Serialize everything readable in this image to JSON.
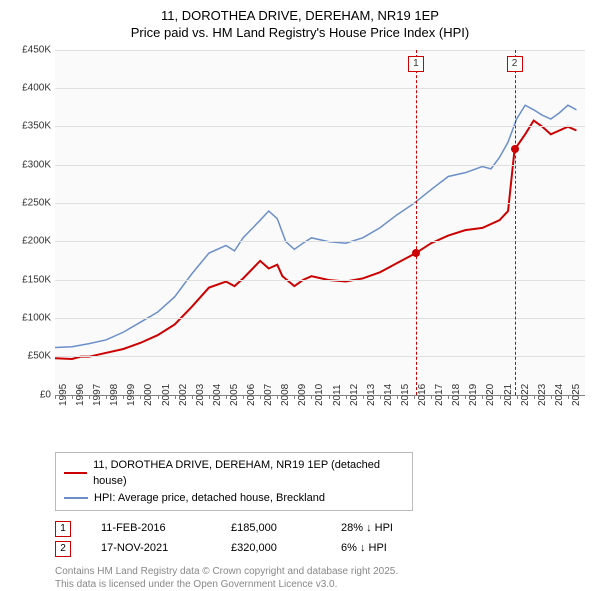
{
  "title_line1": "11, DOROTHEA DRIVE, DEREHAM, NR19 1EP",
  "title_line2": "Price paid vs. HM Land Registry's House Price Index (HPI)",
  "chart": {
    "type": "line",
    "background_color": "#fafafa",
    "grid_color": "#e0e0e0",
    "axis_color": "#808080",
    "ylim": [
      0,
      450
    ],
    "ytick_step": 50,
    "yticks": [
      "£0",
      "£50K",
      "£100K",
      "£150K",
      "£200K",
      "£250K",
      "£300K",
      "£350K",
      "£400K",
      "£450K"
    ],
    "xlim": [
      1995,
      2026
    ],
    "xticks": [
      "1995",
      "1996",
      "1997",
      "1998",
      "1999",
      "2000",
      "2001",
      "2002",
      "2003",
      "2004",
      "2005",
      "2006",
      "2007",
      "2008",
      "2009",
      "2010",
      "2011",
      "2012",
      "2013",
      "2014",
      "2015",
      "2016",
      "2017",
      "2018",
      "2019",
      "2020",
      "2021",
      "2022",
      "2023",
      "2024",
      "2025"
    ],
    "series": [
      {
        "name": "property",
        "color": "#cc0000",
        "width": 2,
        "data": [
          [
            1995,
            48
          ],
          [
            1996,
            47
          ],
          [
            1996.5,
            50
          ],
          [
            1997,
            50
          ],
          [
            1998,
            55
          ],
          [
            1999,
            60
          ],
          [
            2000,
            68
          ],
          [
            2001,
            78
          ],
          [
            2002,
            92
          ],
          [
            2003,
            115
          ],
          [
            2004,
            140
          ],
          [
            2005,
            148
          ],
          [
            2005.5,
            142
          ],
          [
            2006,
            152
          ],
          [
            2007,
            175
          ],
          [
            2007.5,
            165
          ],
          [
            2008,
            170
          ],
          [
            2008.3,
            155
          ],
          [
            2009,
            142
          ],
          [
            2009.5,
            150
          ],
          [
            2010,
            155
          ],
          [
            2011,
            150
          ],
          [
            2012,
            148
          ],
          [
            2013,
            152
          ],
          [
            2014,
            160
          ],
          [
            2015,
            172
          ],
          [
            2016.1,
            185
          ],
          [
            2017,
            198
          ],
          [
            2018,
            208
          ],
          [
            2019,
            215
          ],
          [
            2020,
            218
          ],
          [
            2021,
            228
          ],
          [
            2021.5,
            240
          ],
          [
            2021.88,
            320
          ],
          [
            2022.5,
            340
          ],
          [
            2023,
            358
          ],
          [
            2023.5,
            350
          ],
          [
            2024,
            340
          ],
          [
            2024.5,
            345
          ],
          [
            2025,
            350
          ],
          [
            2025.5,
            345
          ]
        ]
      },
      {
        "name": "hpi",
        "color": "#6b8fc9",
        "width": 1.5,
        "data": [
          [
            1995,
            62
          ],
          [
            1996,
            63
          ],
          [
            1997,
            67
          ],
          [
            1998,
            72
          ],
          [
            1999,
            82
          ],
          [
            2000,
            95
          ],
          [
            2001,
            108
          ],
          [
            2002,
            128
          ],
          [
            2003,
            158
          ],
          [
            2004,
            185
          ],
          [
            2005,
            195
          ],
          [
            2005.5,
            188
          ],
          [
            2006,
            205
          ],
          [
            2007,
            228
          ],
          [
            2007.5,
            240
          ],
          [
            2008,
            230
          ],
          [
            2008.5,
            200
          ],
          [
            2009,
            190
          ],
          [
            2009.5,
            198
          ],
          [
            2010,
            205
          ],
          [
            2011,
            200
          ],
          [
            2012,
            198
          ],
          [
            2013,
            205
          ],
          [
            2014,
            218
          ],
          [
            2015,
            235
          ],
          [
            2016,
            250
          ],
          [
            2017,
            268
          ],
          [
            2018,
            285
          ],
          [
            2019,
            290
          ],
          [
            2020,
            298
          ],
          [
            2020.5,
            295
          ],
          [
            2021,
            310
          ],
          [
            2021.5,
            330
          ],
          [
            2022,
            360
          ],
          [
            2022.5,
            378
          ],
          [
            2023,
            372
          ],
          [
            2023.5,
            365
          ],
          [
            2024,
            360
          ],
          [
            2024.5,
            368
          ],
          [
            2025,
            378
          ],
          [
            2025.5,
            372
          ]
        ]
      }
    ],
    "markers": [
      {
        "label": "1",
        "x": 2016.11,
        "y": 185,
        "color": "#cc0000"
      },
      {
        "label": "2",
        "x": 2021.88,
        "y": 320,
        "color": "#cc0000"
      }
    ]
  },
  "legend": {
    "items": [
      {
        "color": "#cc0000",
        "label": "11, DOROTHEA DRIVE, DEREHAM, NR19 1EP (detached house)",
        "width": 2
      },
      {
        "color": "#6b8fc9",
        "label": "HPI: Average price, detached house, Breckland",
        "width": 1.5
      }
    ]
  },
  "transactions": [
    {
      "num": "1",
      "date": "11-FEB-2016",
      "price": "£185,000",
      "delta": "28% ↓ HPI"
    },
    {
      "num": "2",
      "date": "17-NOV-2021",
      "price": "£320,000",
      "delta": "6% ↓ HPI"
    }
  ],
  "attribution_line1": "Contains HM Land Registry data © Crown copyright and database right 2025.",
  "attribution_line2": "This data is licensed under the Open Government Licence v3.0."
}
